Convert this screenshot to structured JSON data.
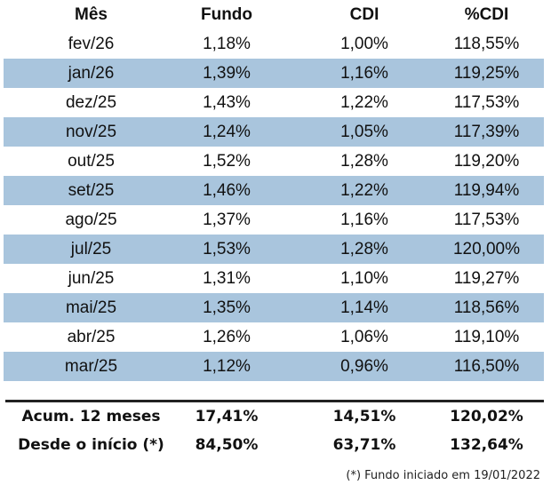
{
  "table": {
    "headers": {
      "month": "Mês",
      "fund": "Fundo",
      "cdi": "CDI",
      "pct_cdi": "%CDI"
    },
    "rows": [
      {
        "month": "fev/26",
        "fund": "1,18%",
        "cdi": "1,00%",
        "pct_cdi": "118,55%"
      },
      {
        "month": "jan/26",
        "fund": "1,39%",
        "cdi": "1,16%",
        "pct_cdi": "119,25%"
      },
      {
        "month": "dez/25",
        "fund": "1,43%",
        "cdi": "1,22%",
        "pct_cdi": "117,53%"
      },
      {
        "month": "nov/25",
        "fund": "1,24%",
        "cdi": "1,05%",
        "pct_cdi": "117,39%"
      },
      {
        "month": "out/25",
        "fund": "1,52%",
        "cdi": "1,28%",
        "pct_cdi": "119,20%"
      },
      {
        "month": "set/25",
        "fund": "1,46%",
        "cdi": "1,22%",
        "pct_cdi": "119,94%"
      },
      {
        "month": "ago/25",
        "fund": "1,37%",
        "cdi": "1,16%",
        "pct_cdi": "117,53%"
      },
      {
        "month": "jul/25",
        "fund": "1,53%",
        "cdi": "1,28%",
        "pct_cdi": "120,00%"
      },
      {
        "month": "jun/25",
        "fund": "1,31%",
        "cdi": "1,10%",
        "pct_cdi": "119,27%"
      },
      {
        "month": "mai/25",
        "fund": "1,35%",
        "cdi": "1,14%",
        "pct_cdi": "118,56%"
      },
      {
        "month": "abr/25",
        "fund": "1,26%",
        "cdi": "1,06%",
        "pct_cdi": "119,10%"
      },
      {
        "month": "mar/25",
        "fund": "1,12%",
        "cdi": "0,96%",
        "pct_cdi": "116,50%"
      }
    ],
    "totals": [
      {
        "label": "Acum. 12 meses",
        "fund": "17,41%",
        "cdi": "14,51%",
        "pct_cdi": "120,02%"
      },
      {
        "label": "Desde o início (*)",
        "fund": "84,50%",
        "cdi": "63,71%",
        "pct_cdi": "132,64%"
      }
    ],
    "shaded_row_color": "#a9c5dd"
  },
  "footnote": "(*) Fundo iniciado em 19/01/2022"
}
